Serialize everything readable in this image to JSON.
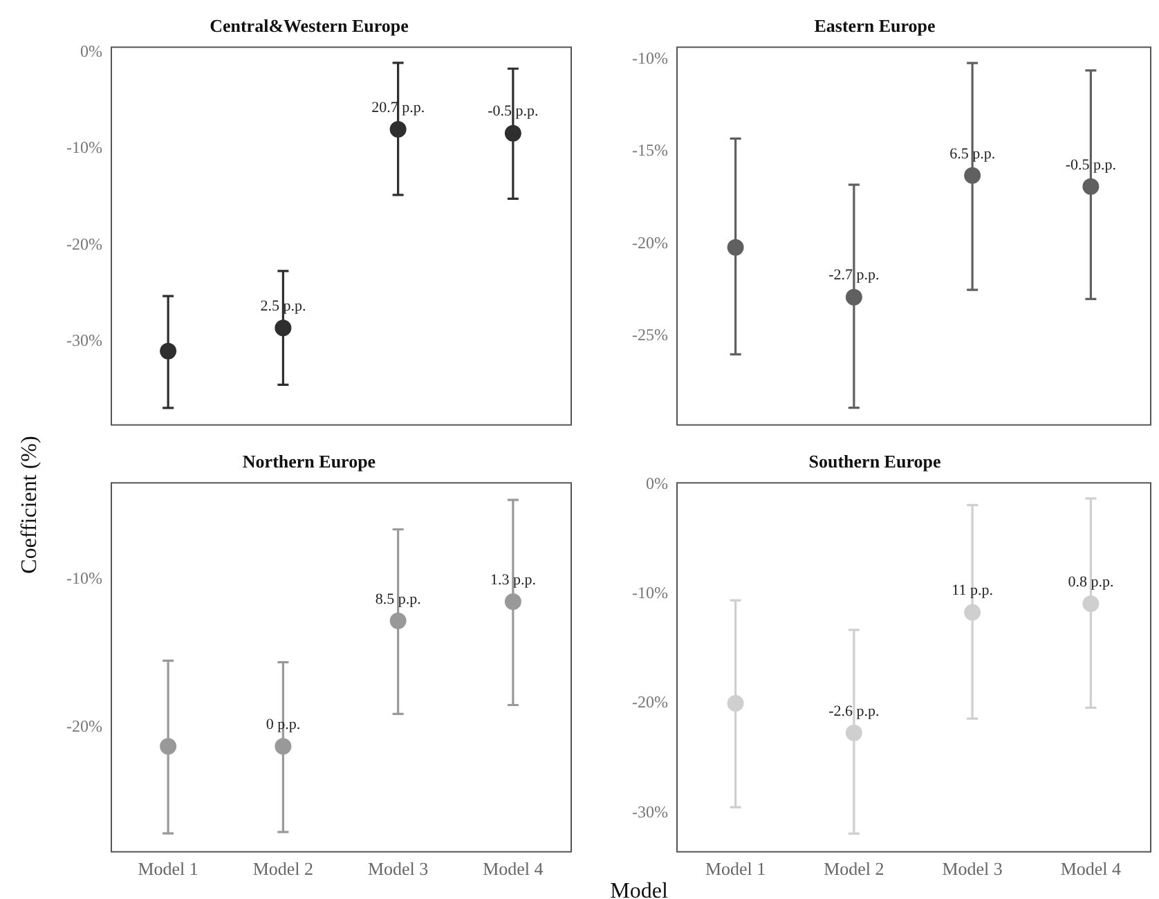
{
  "chart_data": [
    {
      "type": "scatter",
      "title": "Central&Western Europe",
      "ylabel": "Coefficient (%)",
      "categories": [
        "Model 1",
        "Model 2",
        "Model 3",
        "Model 4"
      ],
      "color": "#2e2e2e",
      "marker": "circle",
      "tick_labels": "y",
      "values": [
        -31.0,
        -28.6,
        -8.0,
        -8.4
      ],
      "errors": [
        [
          -36.9,
          -25.3
        ],
        [
          -34.5,
          -22.7
        ],
        [
          -14.8,
          -1.1
        ],
        [
          -15.2,
          -1.7
        ]
      ],
      "ylim": [
        -38.6,
        0.6
      ],
      "yticks": [
        {
          "value": 0,
          "label": "0%"
        },
        {
          "value": -10,
          "label": "-10%"
        },
        {
          "value": -20,
          "label": "-20%"
        },
        {
          "value": -30,
          "label": "-30%"
        }
      ],
      "annotations": [
        {
          "text": "2.5 p.p.",
          "x": "Model 2",
          "y": -28.6
        },
        {
          "text": "20.7 p.p.",
          "x": "Model 3",
          "y": -8.0
        },
        {
          "text": "-0.5 p.p.",
          "x": "Model 4",
          "y": -8.4
        }
      ]
    },
    {
      "type": "scatter",
      "title": "Eastern Europe",
      "categories": [
        "Model 1",
        "Model 2",
        "Model 3",
        "Model 4"
      ],
      "color": "#606060",
      "marker": "circle",
      "tick_labels": "y",
      "values": [
        -20.2,
        -22.9,
        -16.3,
        -16.9
      ],
      "errors": [
        [
          -26.0,
          -14.3
        ],
        [
          -28.9,
          -16.8
        ],
        [
          -22.5,
          -10.2
        ],
        [
          -23.0,
          -10.6
        ]
      ],
      "ylim": [
        -29.8,
        -9.3
      ],
      "yticks": [
        {
          "value": -10,
          "label": "-10%"
        },
        {
          "value": -15,
          "label": "-15%"
        },
        {
          "value": -20,
          "label": "-20%"
        },
        {
          "value": -25,
          "label": "-25%"
        }
      ],
      "annotations": [
        {
          "text": "-2.7 p.p.",
          "x": "Model 2",
          "y": -22.9
        },
        {
          "text": "6.5 p.p.",
          "x": "Model 3",
          "y": -16.3
        },
        {
          "text": "-0.5 p.p.",
          "x": "Model 4",
          "y": -16.9
        }
      ]
    },
    {
      "type": "scatter",
      "title": "Northern Europe",
      "categories": [
        "Model 1",
        "Model 2",
        "Model 3",
        "Model 4"
      ],
      "color": "#999999",
      "marker": "circle",
      "values": [
        -21.3,
        -21.3,
        -12.8,
        -11.5
      ],
      "errors": [
        [
          -27.2,
          -15.5
        ],
        [
          -27.1,
          -15.6
        ],
        [
          -19.1,
          -6.6
        ],
        [
          -18.5,
          -4.6
        ]
      ],
      "ylim": [
        -28.4,
        -3.4
      ],
      "yticks": [
        {
          "value": -10,
          "label": "-10%"
        },
        {
          "value": -20,
          "label": "-20%"
        }
      ],
      "annotations": [
        {
          "text": "0 p.p.",
          "x": "Model 2",
          "y": -21.3
        },
        {
          "text": "8.5 p.p.",
          "x": "Model 3",
          "y": -12.8
        },
        {
          "text": "1.3 p.p.",
          "x": "Model 4",
          "y": -11.5
        }
      ]
    },
    {
      "type": "scatter",
      "title": "Southern Europe",
      "xlabel": "Model",
      "categories": [
        "Model 1",
        "Model 2",
        "Model 3",
        "Model 4"
      ],
      "color": "#cfcfcf",
      "marker": "circle",
      "values": [
        -20.0,
        -22.7,
        -11.7,
        -10.9
      ],
      "errors": [
        [
          -29.5,
          -10.6
        ],
        [
          -31.9,
          -13.3
        ],
        [
          -21.4,
          -1.9
        ],
        [
          -20.4,
          -1.3
        ]
      ],
      "ylim": [
        -33.5,
        0.2
      ],
      "yticks": [
        {
          "value": 0,
          "label": "0%"
        },
        {
          "value": -10,
          "label": "-10%"
        },
        {
          "value": -20,
          "label": "-20%"
        },
        {
          "value": -30,
          "label": "-30%"
        }
      ],
      "annotations": [
        {
          "text": "-2.6 p.p.",
          "x": "Model 2",
          "y": -22.7
        },
        {
          "text": "11 p.p.",
          "x": "Model 3",
          "y": -11.7
        },
        {
          "text": "0.8 p.p.",
          "x": "Model 4",
          "y": -10.9
        }
      ]
    }
  ]
}
